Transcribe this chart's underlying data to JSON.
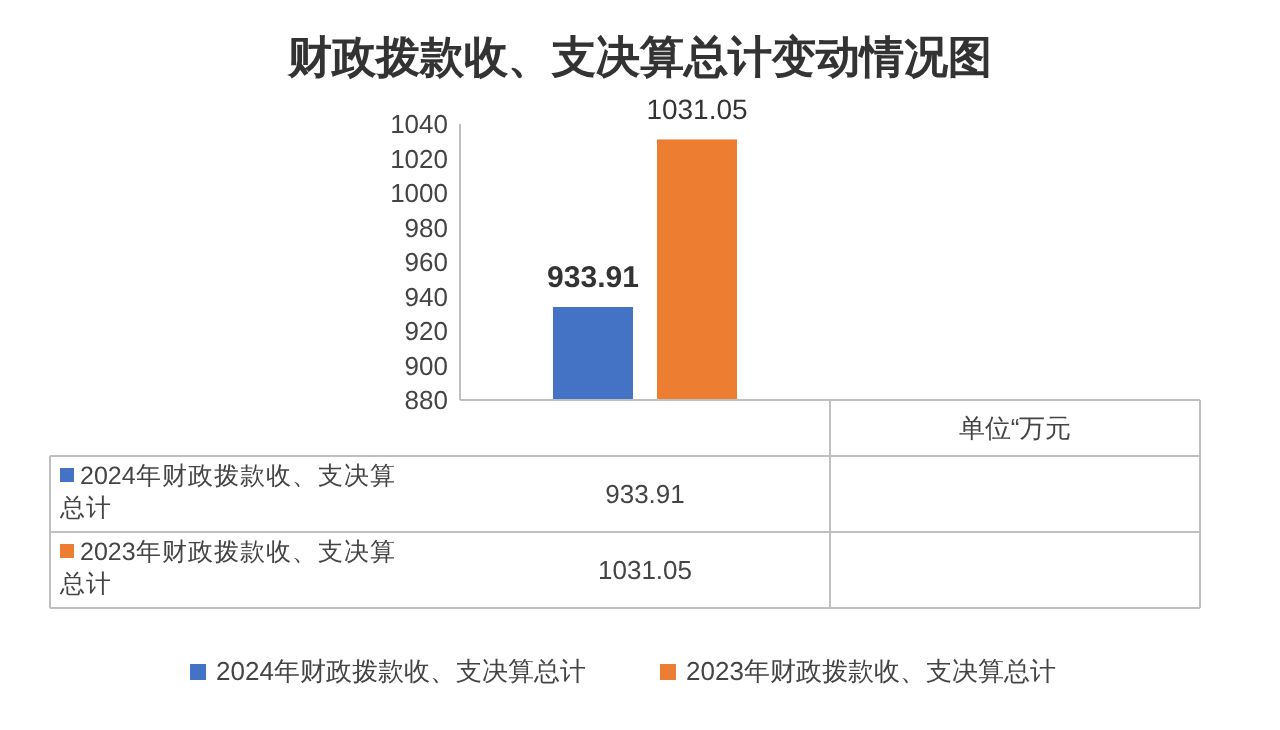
{
  "chart_data": {
    "type": "bar",
    "title": "财政拨款收、支决算总计变动情况图",
    "categories": [
      null,
      "单位“万元"
    ],
    "series": [
      {
        "name": "2024年财政拨款收、支决算总计",
        "color": "#4472c4",
        "values": [
          933.91,
          null
        ],
        "value_labels": [
          "933.91",
          null
        ]
      },
      {
        "name": "2023年财政拨款收、支决算总计",
        "color": "#ed7d31",
        "values": [
          1031.05,
          null
        ],
        "value_labels": [
          "1031.05",
          null
        ]
      }
    ],
    "ylim": [
      880,
      1040
    ],
    "yticks": [
      880,
      900,
      920,
      940,
      960,
      980,
      1000,
      1020,
      1040
    ],
    "annotations": [
      "933.91",
      "1031.05"
    ],
    "grid": false,
    "legend": "bottom"
  }
}
